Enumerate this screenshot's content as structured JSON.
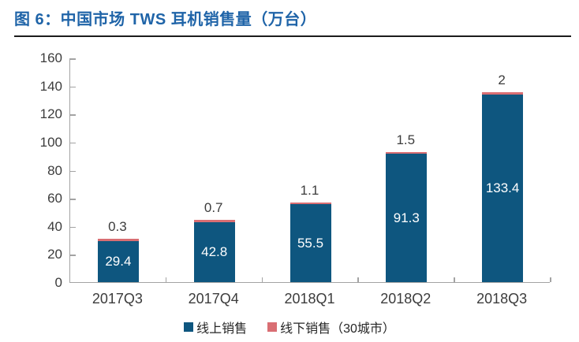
{
  "header": {
    "title": "图 6：中国市场 TWS 耳机销售量（万台）",
    "title_color": "#1f64a8",
    "divider_color": "#1c1c1c"
  },
  "chart_data": {
    "type": "bar",
    "stacked": true,
    "title": "中国市场 TWS 耳机销售量（万台）",
    "categories": [
      "2017Q3",
      "2017Q4",
      "2018Q1",
      "2018Q2",
      "2018Q3"
    ],
    "series": [
      {
        "name": "线上销售",
        "color": "#0e567f",
        "values": [
          29.4,
          42.8,
          55.5,
          91.3,
          133.4
        ]
      },
      {
        "name": "线下销售（30城市）",
        "color": "#d96e73",
        "values": [
          0.3,
          0.7,
          1.1,
          1.5,
          2
        ]
      }
    ],
    "inner_labels": [
      "29.4",
      "42.8",
      "55.5",
      "91.3",
      "133.4"
    ],
    "total_labels": [
      "0.3",
      "0.7",
      "1.1",
      "1.5",
      "2"
    ],
    "xlabel": "",
    "ylabel": "",
    "ylim": [
      0,
      160
    ],
    "yticks": [
      0,
      20,
      40,
      60,
      80,
      100,
      120,
      140,
      160
    ],
    "grid": false,
    "axis_color": "#a3a3a3",
    "tick_label_color": "#3c3c3c",
    "legend_position": "bottom"
  },
  "legend": {
    "items": [
      {
        "label": "线上销售",
        "color": "#0e567f"
      },
      {
        "label": "线下销售（30城市）",
        "color": "#d96e73"
      }
    ]
  }
}
